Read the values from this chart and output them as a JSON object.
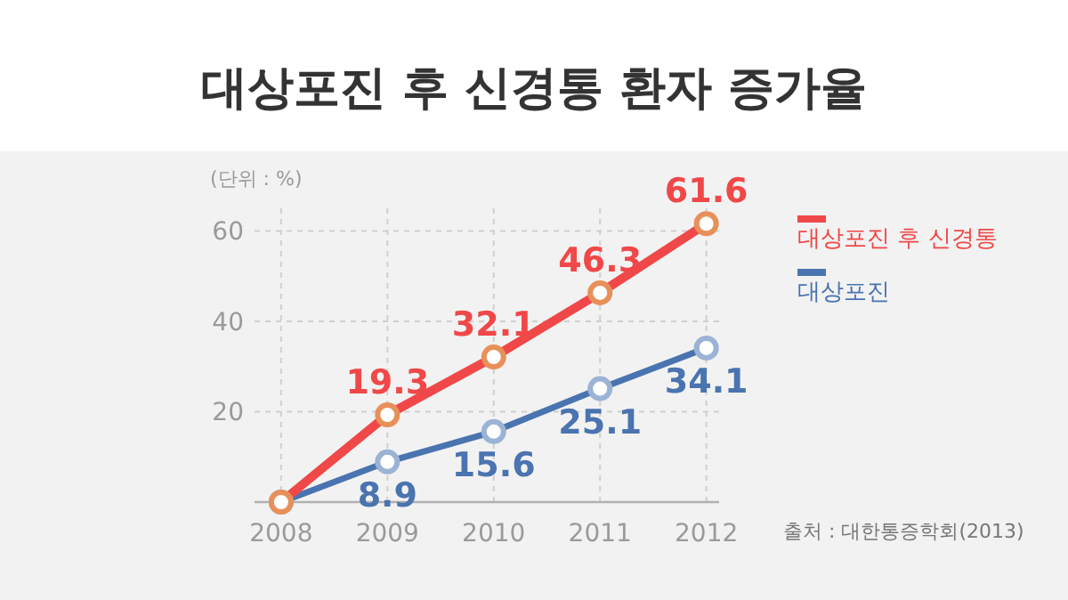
{
  "chart_data": {
    "type": "line",
    "title": "대상포진 후 신경통 환자 증가율",
    "annotations": [
      "(단위 : %)",
      "출처 : 대한통증학회(2013)"
    ],
    "x": [
      2008,
      2009,
      2010,
      2011,
      2012
    ],
    "series": [
      {
        "name": "대상포진 후 신경통",
        "color": "#f04848",
        "values": [
          0,
          19.3,
          32.1,
          46.3,
          61.6
        ],
        "value_labels": [
          null,
          "19.3",
          "32.1",
          "46.3",
          "61.6"
        ]
      },
      {
        "name": "대상포진",
        "color": "#4a74b0",
        "values": [
          0,
          8.9,
          15.6,
          25.1,
          34.1
        ],
        "value_labels": [
          null,
          "8.9",
          "15.6",
          "25.1",
          "34.1"
        ]
      }
    ],
    "xlim": [
      2007.75,
      2012.12
    ],
    "ylim": [
      0,
      65
    ],
    "xticks": [
      2008,
      2009,
      2010,
      2011,
      2012
    ],
    "yticks": [
      {
        "value": 0,
        "label": null
      },
      20,
      40,
      60
    ],
    "grid": true,
    "legend": "right",
    "marker": "circle",
    "line_style": "solid"
  }
}
